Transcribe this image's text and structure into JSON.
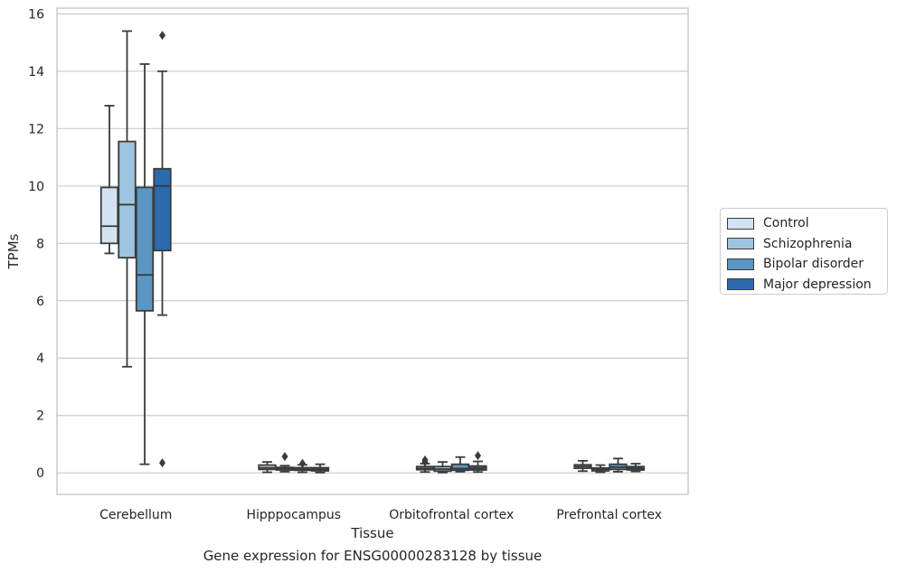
{
  "chart_data": {
    "type": "box",
    "caption": "Gene expression for ENSG00000283128 by tissue",
    "xlabel": "Tissue",
    "ylabel": "TPMs",
    "ylim": [
      -0.75,
      16.2
    ],
    "yticks": [
      0,
      2,
      4,
      6,
      8,
      10,
      12,
      14,
      16
    ],
    "categories": [
      "Cerebellum",
      "Hipppocampus",
      "Orbitofrontal cortex",
      "Prefrontal cortex"
    ],
    "grid": true,
    "legend_position": "right",
    "series": [
      {
        "name": "Control",
        "color": "#d3e2f2",
        "boxes": [
          {
            "whislo": 7.65,
            "q1": 8.0,
            "med": 8.6,
            "q3": 9.95,
            "whishi": 12.8,
            "fliers": []
          },
          {
            "whislo": 0.02,
            "q1": 0.12,
            "med": 0.18,
            "q3": 0.27,
            "whishi": 0.38,
            "fliers": []
          },
          {
            "whislo": 0.03,
            "q1": 0.11,
            "med": 0.16,
            "q3": 0.22,
            "whishi": 0.32,
            "fliers": [
              0.38,
              0.45
            ]
          },
          {
            "whislo": 0.06,
            "q1": 0.16,
            "med": 0.22,
            "q3": 0.28,
            "whishi": 0.42,
            "fliers": []
          }
        ]
      },
      {
        "name": "Schizophrenia",
        "color": "#9ec5e0",
        "boxes": [
          {
            "whislo": 3.7,
            "q1": 7.5,
            "med": 9.35,
            "q3": 11.55,
            "whishi": 15.4,
            "fliers": []
          },
          {
            "whislo": 0.04,
            "q1": 0.1,
            "med": 0.14,
            "q3": 0.19,
            "whishi": 0.25,
            "fliers": [
              0.57
            ]
          },
          {
            "whislo": 0.01,
            "q1": 0.06,
            "med": 0.13,
            "q3": 0.22,
            "whishi": 0.38,
            "fliers": []
          },
          {
            "whislo": 0.02,
            "q1": 0.07,
            "med": 0.12,
            "q3": 0.17,
            "whishi": 0.27,
            "fliers": []
          }
        ]
      },
      {
        "name": "Bipolar disorder",
        "color": "#5a97c3",
        "boxes": [
          {
            "whislo": 0.3,
            "q1": 5.65,
            "med": 6.9,
            "q3": 9.95,
            "whishi": 14.25,
            "fliers": []
          },
          {
            "whislo": 0.02,
            "q1": 0.09,
            "med": 0.13,
            "q3": 0.18,
            "whishi": 0.28,
            "fliers": [
              0.33
            ]
          },
          {
            "whislo": 0.04,
            "q1": 0.09,
            "med": 0.15,
            "q3": 0.3,
            "whishi": 0.55,
            "fliers": []
          },
          {
            "whislo": 0.04,
            "q1": 0.12,
            "med": 0.2,
            "q3": 0.3,
            "whishi": 0.5,
            "fliers": []
          }
        ]
      },
      {
        "name": "Major depression",
        "color": "#2a6bac",
        "boxes": [
          {
            "whislo": 5.5,
            "q1": 7.75,
            "med": 10.0,
            "q3": 10.6,
            "whishi": 14.0,
            "fliers": [
              0.35,
              15.25
            ]
          },
          {
            "whislo": 0.01,
            "q1": 0.07,
            "med": 0.12,
            "q3": 0.18,
            "whishi": 0.3,
            "fliers": []
          },
          {
            "whislo": 0.03,
            "q1": 0.1,
            "med": 0.16,
            "q3": 0.24,
            "whishi": 0.4,
            "fliers": [
              0.6
            ]
          },
          {
            "whislo": 0.05,
            "q1": 0.1,
            "med": 0.16,
            "q3": 0.22,
            "whishi": 0.32,
            "fliers": []
          }
        ]
      }
    ]
  }
}
